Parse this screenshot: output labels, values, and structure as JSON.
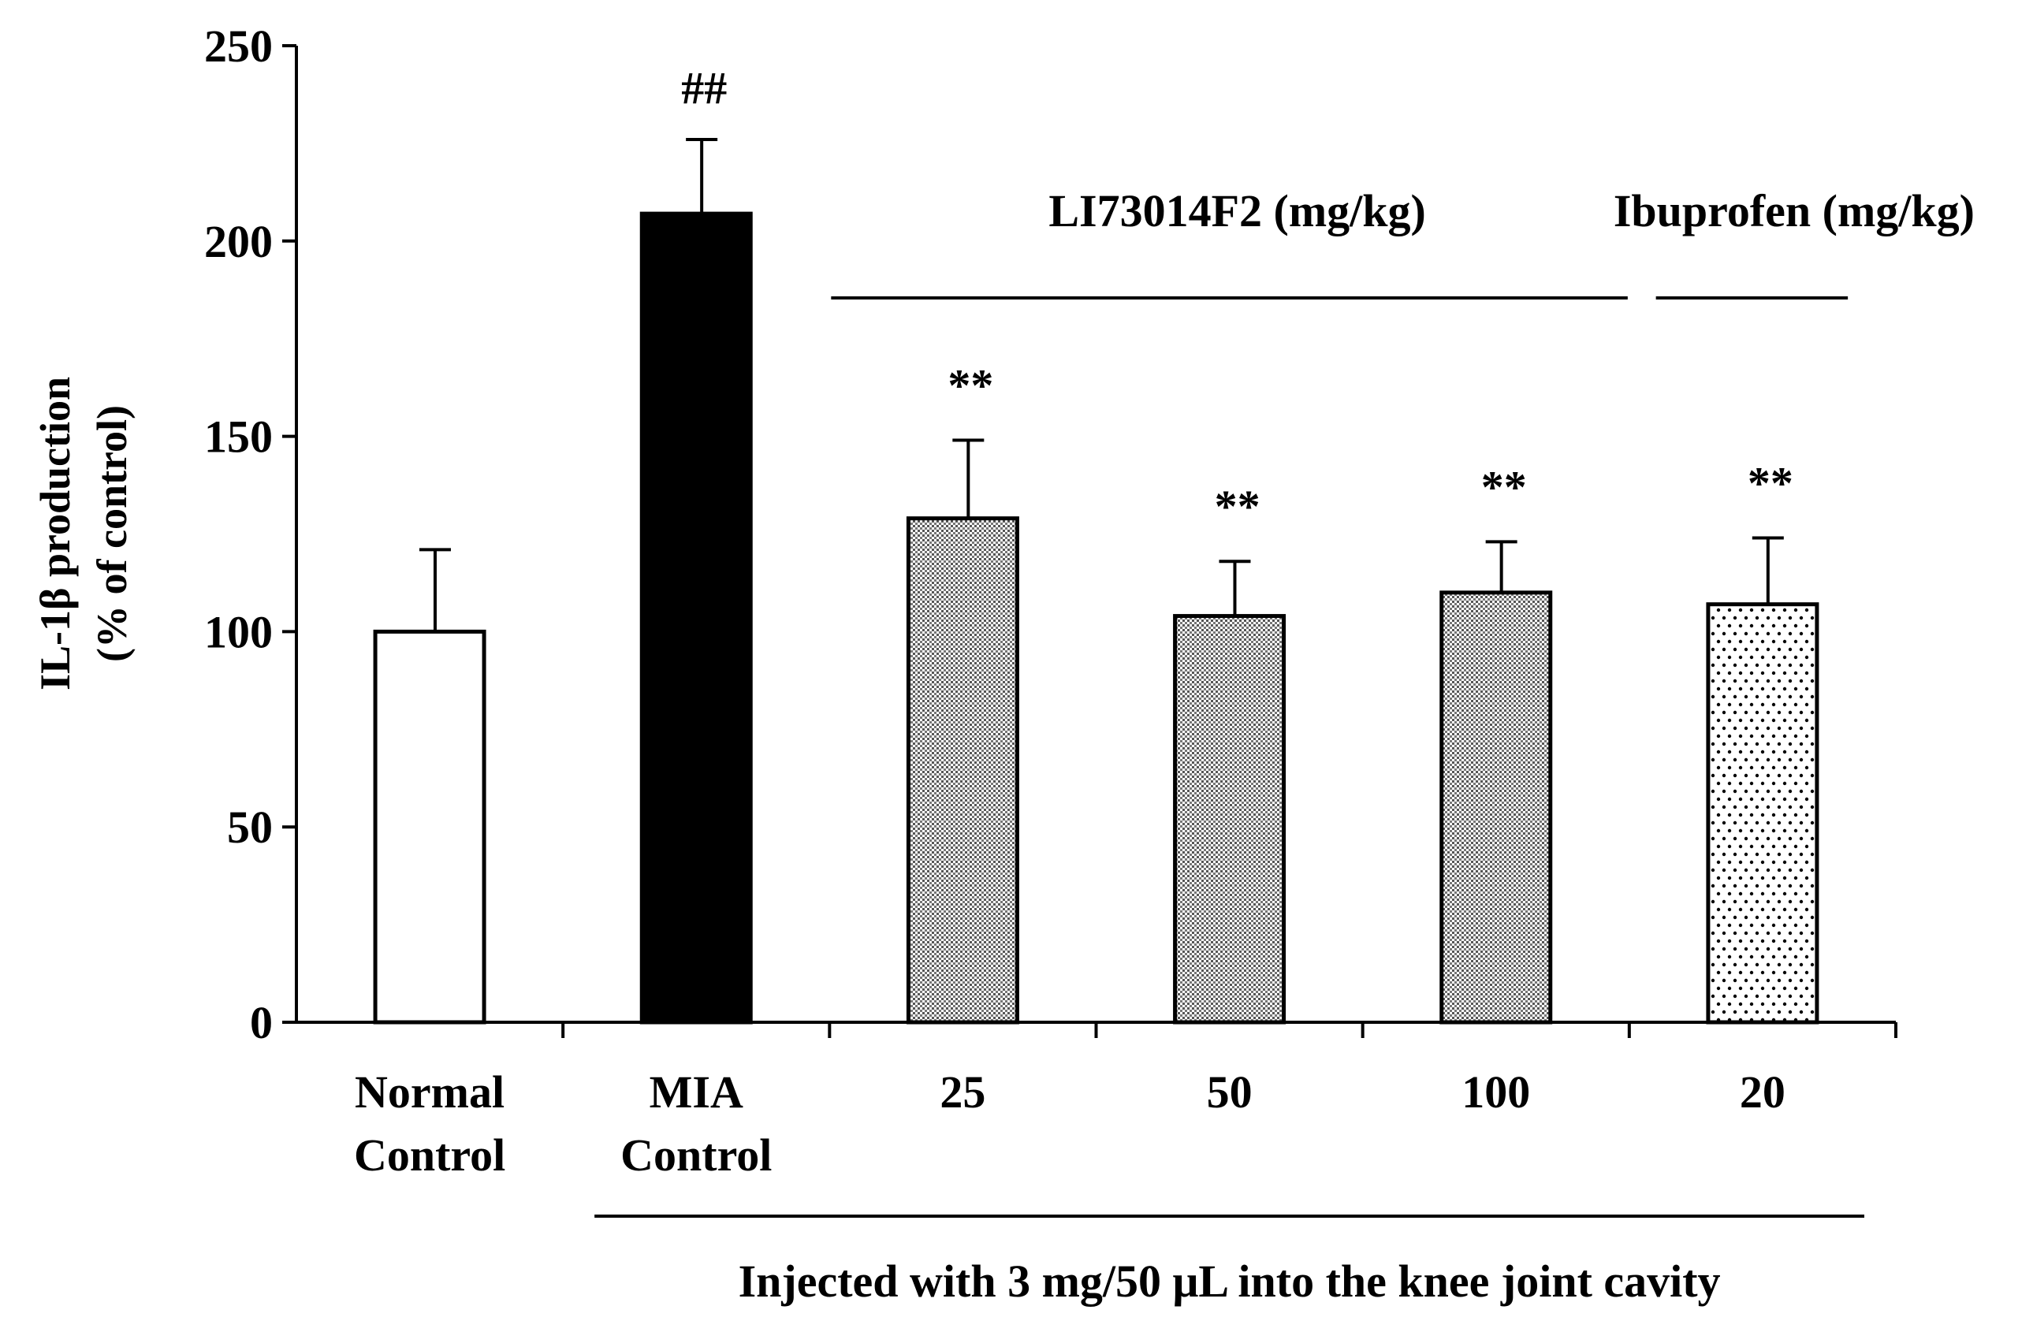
{
  "chart_data": {
    "type": "bar",
    "ylabel": "IL-1β production",
    "ylabel_unit": "(% of control)",
    "ylim": [
      0,
      250
    ],
    "yticks": [
      0,
      50,
      100,
      150,
      200,
      250
    ],
    "categories": [
      [
        "Normal",
        "Control"
      ],
      [
        "MIA",
        "Control"
      ],
      [
        "25"
      ],
      [
        "50"
      ],
      [
        "100"
      ],
      [
        "20"
      ]
    ],
    "values": [
      100,
      207,
      129,
      104,
      110,
      107
    ],
    "errors": [
      21,
      19,
      20,
      14,
      13,
      17
    ],
    "significance": [
      "",
      "##",
      "**",
      "**",
      "**",
      "**"
    ],
    "fills": [
      "white",
      "black",
      "dense-dots",
      "dense-dots",
      "dense-dots",
      "sparse-dots"
    ],
    "group_labels": [
      {
        "text": "LI73014F2 (mg/kg)",
        "span": [
          2,
          4
        ]
      },
      {
        "text": "Ibuprofen  (mg/kg)",
        "span": [
          5,
          5
        ]
      }
    ],
    "bottom_note": {
      "text": "Injected with 3 mg/50 μL into the knee joint cavity",
      "span": [
        1,
        5
      ]
    },
    "colors": {
      "bar_stroke": "#000000",
      "mia_fill": "#000000",
      "normal_fill": "#ffffff"
    }
  }
}
